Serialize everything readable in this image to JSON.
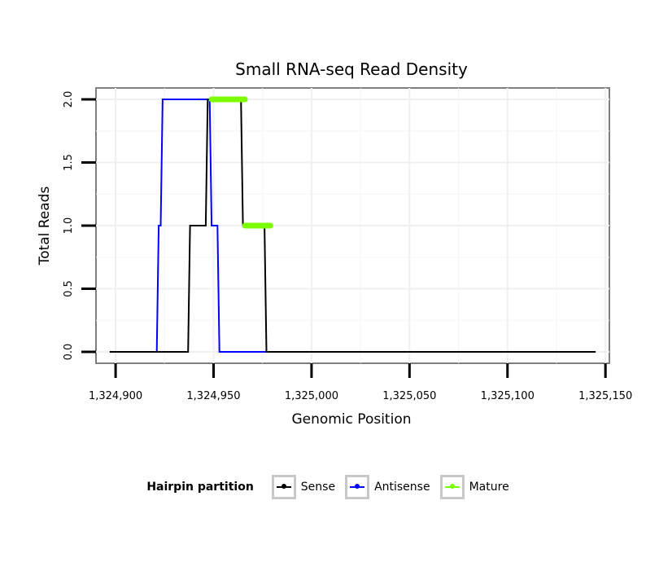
{
  "chart_data": {
    "type": "line",
    "title": "Small RNA-seq Read Density",
    "xlabel": "Genomic Position",
    "ylabel": "Total Reads",
    "xlim": [
      1324890,
      1325152
    ],
    "ylim": [
      -0.09,
      2.09
    ],
    "x_ticks": [
      1324900,
      1324950,
      1325000,
      1325050,
      1325100,
      1325150
    ],
    "x_tick_labels": [
      "1,324,900",
      "1,324,950",
      "1,325,000",
      "1,325,050",
      "1,325,100",
      "1,325,150"
    ],
    "y_ticks": [
      0,
      0.5,
      1,
      1.5,
      2
    ],
    "y_tick_labels": [
      "0.0",
      "0.5",
      "1.0",
      "1.5",
      "2.0"
    ],
    "grid": true,
    "legend_position": "bottom",
    "series": [
      {
        "name": "Sense",
        "color": "#000000",
        "x": [
          1324897,
          1324937,
          1324938,
          1324946,
          1324947,
          1324948,
          1324964,
          1324965,
          1324976,
          1324977,
          1325145
        ],
        "y": [
          0,
          0,
          1,
          1,
          2,
          2,
          2,
          1,
          1,
          0,
          0
        ]
      },
      {
        "name": "Antisense",
        "color": "#0000ff",
        "x": [
          1324897,
          1324921,
          1324922,
          1324923,
          1324924,
          1324948,
          1324949,
          1324950,
          1324952,
          1324953,
          1325145
        ],
        "y": [
          0,
          0,
          1,
          1,
          2,
          2,
          1,
          1,
          1,
          0,
          0
        ]
      },
      {
        "name": "Mature",
        "color": "#7cfc00",
        "segments": [
          {
            "x": [
              1324949,
              1324966
            ],
            "y": [
              2,
              2
            ]
          },
          {
            "x": [
              1324966,
              1324979
            ],
            "y": [
              1,
              1
            ]
          }
        ]
      }
    ]
  },
  "legend": {
    "title": "Hairpin partition",
    "items": [
      {
        "label": "Sense",
        "color": "#000000"
      },
      {
        "label": "Antisense",
        "color": "#0000ff"
      },
      {
        "label": "Mature",
        "color": "#7cfc00"
      }
    ]
  }
}
